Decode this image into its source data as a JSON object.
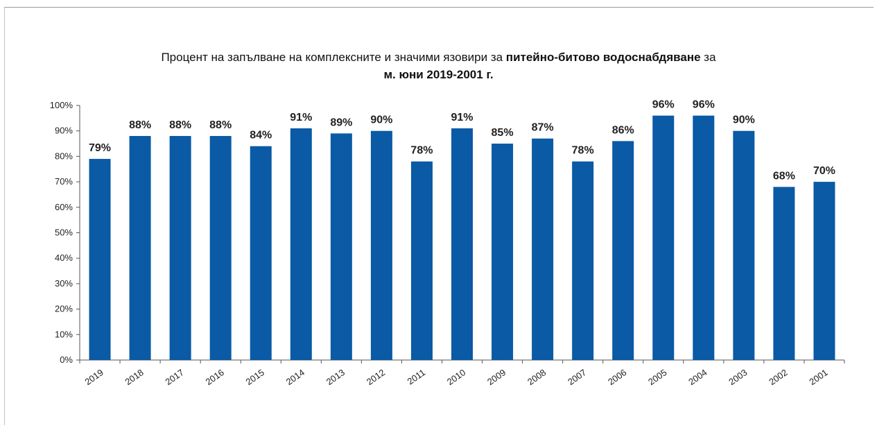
{
  "chart_data": {
    "type": "bar",
    "title_part1": "Процент на запълване на комплексните и значими язовири за ",
    "title_bold1": "питейно-битово  водоснабдяване",
    "title_part2": " за",
    "title_line2": "м. юни 2019-2001 г.",
    "categories": [
      "2019",
      "2018",
      "2017",
      "2016",
      "2015",
      "2014",
      "2013",
      "2012",
      "2011",
      "2010",
      "2009",
      "2008",
      "2007",
      "2006",
      "2005",
      "2004",
      "2003",
      "2002",
      "2001"
    ],
    "values": [
      79,
      88,
      88,
      88,
      84,
      91,
      89,
      90,
      78,
      91,
      85,
      87,
      78,
      86,
      96,
      96,
      90,
      68,
      70
    ],
    "data_labels": [
      "79%",
      "88%",
      "88%",
      "88%",
      "84%",
      "91%",
      "89%",
      "90%",
      "78%",
      "91%",
      "85%",
      "87%",
      "78%",
      "86%",
      "96%",
      "96%",
      "90%",
      "68%",
      "70%"
    ],
    "y_ticks": [
      0,
      10,
      20,
      30,
      40,
      50,
      60,
      70,
      80,
      90,
      100
    ],
    "y_tick_labels": [
      "0%",
      "10%",
      "20%",
      "30%",
      "40%",
      "50%",
      "60%",
      "70%",
      "80%",
      "90%",
      "100%"
    ],
    "ylim": [
      0,
      100
    ],
    "xlabel": "",
    "ylabel": "",
    "grid": false,
    "bar_color": "#0a5aa5"
  }
}
